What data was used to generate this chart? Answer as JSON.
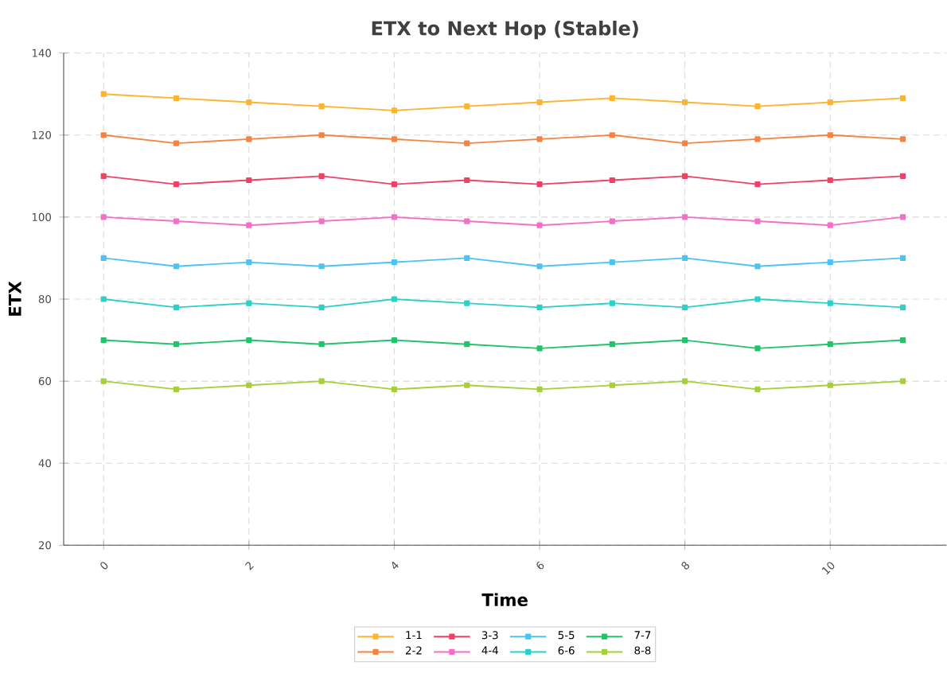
{
  "chart_data": {
    "type": "line",
    "title": "ETX to Next Hop (Stable)",
    "xlabel": "Time",
    "ylabel": "ETX",
    "x": [
      0,
      1,
      2,
      3,
      4,
      5,
      6,
      7,
      8,
      9,
      10,
      11
    ],
    "xlim": [
      -0.55,
      11.6
    ],
    "ylim": [
      20,
      140
    ],
    "xticks": [
      0,
      2,
      4,
      6,
      8,
      10
    ],
    "yticks": [
      20,
      40,
      60,
      80,
      100,
      120,
      140
    ],
    "grid": true,
    "legend": "bottom",
    "marker": "square",
    "line_style": "solid",
    "series": [
      {
        "name": "1-1",
        "color": "#fdb42f",
        "values": [
          130,
          129,
          128,
          127,
          126,
          127,
          128,
          129,
          128,
          127,
          128,
          129
        ]
      },
      {
        "name": "2-2",
        "color": "#f58442",
        "values": [
          120,
          118,
          119,
          120,
          119,
          118,
          119,
          120,
          118,
          119,
          120,
          119
        ]
      },
      {
        "name": "3-3",
        "color": "#ee4266",
        "values": [
          110,
          108,
          109,
          110,
          108,
          109,
          108,
          109,
          110,
          108,
          109,
          110
        ]
      },
      {
        "name": "4-4",
        "color": "#f46fc8",
        "values": [
          100,
          99,
          98,
          99,
          100,
          99,
          98,
          99,
          100,
          99,
          98,
          100
        ]
      },
      {
        "name": "5-5",
        "color": "#4cc3f5",
        "values": [
          90,
          88,
          89,
          88,
          89,
          90,
          88,
          89,
          90,
          88,
          89,
          90
        ]
      },
      {
        "name": "6-6",
        "color": "#2ad1c9",
        "values": [
          80,
          78,
          79,
          78,
          80,
          79,
          78,
          79,
          78,
          80,
          79,
          78
        ]
      },
      {
        "name": "7-7",
        "color": "#1fc46b",
        "values": [
          70,
          69,
          70,
          69,
          70,
          69,
          68,
          69,
          70,
          68,
          69,
          70
        ]
      },
      {
        "name": "8-8",
        "color": "#a6cf3a",
        "values": [
          60,
          58,
          59,
          60,
          58,
          59,
          58,
          59,
          60,
          58,
          59,
          60
        ]
      }
    ]
  }
}
